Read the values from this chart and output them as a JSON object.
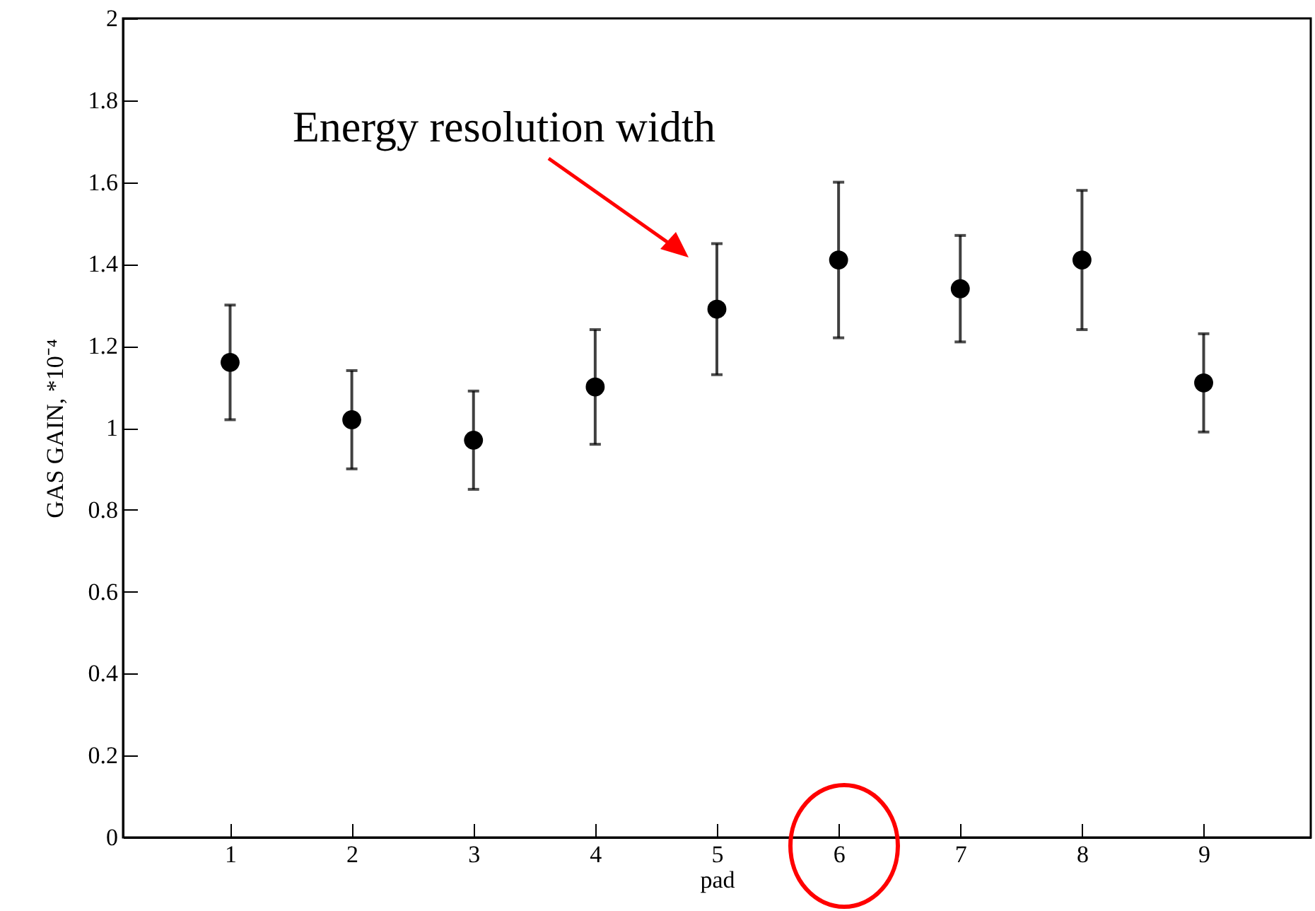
{
  "chart_data": {
    "type": "scatter",
    "xlabel": "pad",
    "ylabel": "GAS GAIN, *10⁻⁴",
    "x": [
      1,
      2,
      3,
      4,
      5,
      6,
      7,
      8,
      9
    ],
    "values": [
      1.16,
      1.02,
      0.97,
      1.1,
      1.29,
      1.41,
      1.34,
      1.41,
      1.11
    ],
    "errors": [
      [
        1.02,
        1.3
      ],
      [
        0.9,
        1.14
      ],
      [
        0.85,
        1.09
      ],
      [
        0.96,
        1.24
      ],
      [
        1.13,
        1.45
      ],
      [
        1.22,
        1.6
      ],
      [
        1.21,
        1.47
      ],
      [
        1.24,
        1.58
      ],
      [
        0.99,
        1.23
      ]
    ],
    "color": "#000000",
    "marker": "circle",
    "xlim": [
      0.12,
      9.88
    ],
    "xticks": [
      1,
      2,
      3,
      4,
      5,
      6,
      7,
      8,
      9
    ],
    "ylim": [
      0,
      2
    ],
    "yticks": [
      0,
      0.2,
      0.4,
      0.6,
      0.8,
      1,
      1.2,
      1.4,
      1.6,
      1.8,
      2
    ],
    "grid": false,
    "annotations": [
      "Energy resolution width"
    ]
  }
}
